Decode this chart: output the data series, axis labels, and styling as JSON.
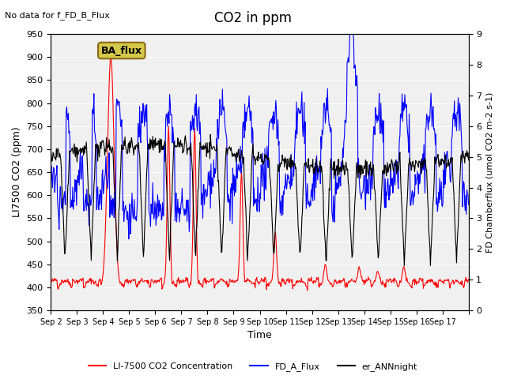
{
  "title": "CO2 in ppm",
  "top_left_text": "No data for f_FD_B_Flux",
  "annotation_box": "BA_flux",
  "xlabel": "Time",
  "ylabel_left": "LI7500 CO2 (ppm)",
  "ylabel_right": "FD Chamberflux (umol CO2 m-2 s-1)",
  "ylim_left": [
    350,
    950
  ],
  "ylim_right": [
    0.0,
    9.0
  ],
  "yticks_left": [
    350,
    400,
    450,
    500,
    550,
    600,
    650,
    700,
    750,
    800,
    850,
    900,
    950
  ],
  "yticks_right": [
    0.0,
    1.0,
    2.0,
    3.0,
    4.0,
    5.0,
    6.0,
    7.0,
    8.0,
    9.0
  ],
  "xtick_labels": [
    "Sep 2",
    "Sep 3",
    "Sep 4",
    "Sep 5",
    "Sep 6",
    "Sep 7",
    "Sep 8",
    "Sep 9",
    "Sep 10",
    "Sep 11",
    "Sep 12",
    "Sep 13",
    "Sep 14",
    "Sep 15",
    "Sep 16",
    "Sep 17"
  ],
  "n_days": 16,
  "legend": [
    {
      "label": "LI-7500 CO2 Concentration",
      "color": "red",
      "lw": 1.5
    },
    {
      "label": "FD_A_Flux",
      "color": "blue",
      "lw": 1.5
    },
    {
      "label": "er_ANNnight",
      "color": "black",
      "lw": 1.5
    }
  ],
  "plot_bg_color": "#f0f0f0",
  "annotation_bg": "#d4c84a",
  "annotation_border": "#8b6914"
}
